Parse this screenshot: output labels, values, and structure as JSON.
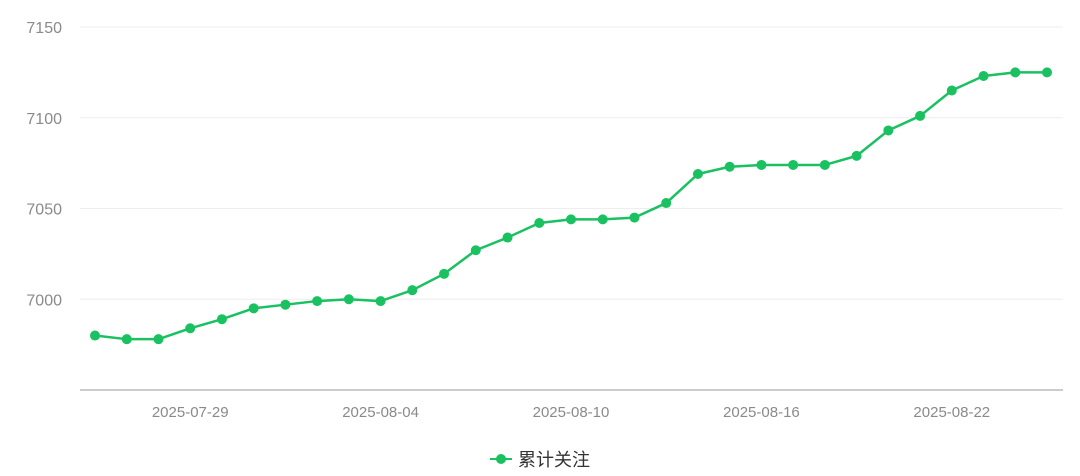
{
  "colors": {
    "series": "#19c161",
    "grid": "#eeeeee",
    "axis": "#cccccc"
  },
  "chart_data": {
    "type": "line",
    "x": [
      "2025-07-26",
      "2025-07-27",
      "2025-07-28",
      "2025-07-29",
      "2025-07-30",
      "2025-07-31",
      "2025-08-01",
      "2025-08-02",
      "2025-08-03",
      "2025-08-04",
      "2025-08-05",
      "2025-08-06",
      "2025-08-07",
      "2025-08-08",
      "2025-08-09",
      "2025-08-10",
      "2025-08-11",
      "2025-08-12",
      "2025-08-13",
      "2025-08-14",
      "2025-08-15",
      "2025-08-16",
      "2025-08-17",
      "2025-08-18",
      "2025-08-19",
      "2025-08-20",
      "2025-08-21",
      "2025-08-22",
      "2025-08-23",
      "2025-08-24",
      "2025-08-25"
    ],
    "series": [
      {
        "name": "累计关注",
        "values": [
          6980,
          6978,
          6978,
          6984,
          6989,
          6995,
          6997,
          6999,
          7000,
          6999,
          7005,
          7014,
          7027,
          7034,
          7042,
          7044,
          7044,
          7045,
          7053,
          7069,
          7073,
          7074,
          7074,
          7074,
          7079,
          7093,
          7101,
          7115,
          7123,
          7125,
          7125
        ]
      }
    ],
    "xticks": [
      "2025-07-29",
      "2025-08-04",
      "2025-08-10",
      "2025-08-16",
      "2025-08-22"
    ],
    "yticks": [
      7000,
      7050,
      7100,
      7150
    ],
    "ylim": [
      6950,
      7150
    ],
    "grid": true,
    "legend": "bottom-center",
    "title": "",
    "xlabel": "",
    "ylabel": ""
  }
}
